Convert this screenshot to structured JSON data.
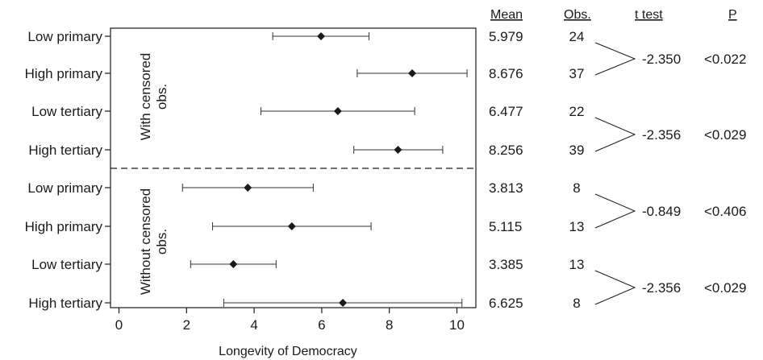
{
  "chart_data": {
    "type": "scatter",
    "xlabel": "Longevity of Democracy",
    "xlim": [
      -0.3,
      10.6
    ],
    "xticks": [
      "0",
      "2",
      "4",
      "6",
      "8",
      "10"
    ],
    "panels": [
      {
        "label": "With censored obs.",
        "rows": [
          {
            "label": "Low primary",
            "mean": 5.979,
            "low": 4.55,
            "high": 7.4,
            "mean_text": "5.979",
            "obs": "24"
          },
          {
            "label": "High primary",
            "mean": 8.676,
            "low": 7.05,
            "high": 10.3,
            "mean_text": "8.676",
            "obs": "37"
          },
          {
            "label": "Low tertiary",
            "mean": 6.477,
            "low": 4.2,
            "high": 8.75,
            "mean_text": "6.477",
            "obs": "22"
          },
          {
            "label": "High tertiary",
            "mean": 8.256,
            "low": 6.95,
            "high": 9.58,
            "mean_text": "8.256",
            "obs": "39"
          }
        ],
        "tests": [
          {
            "t": "-2.350",
            "p": "<0.022"
          },
          {
            "t": "-2.356",
            "p": "<0.029"
          }
        ]
      },
      {
        "label": "Without censored obs.",
        "rows": [
          {
            "label": "Low primary",
            "mean": 3.813,
            "low": 1.88,
            "high": 5.75,
            "mean_text": "3.813",
            "obs": "8"
          },
          {
            "label": "High primary",
            "mean": 5.115,
            "low": 2.77,
            "high": 7.46,
            "mean_text": "5.115",
            "obs": "13"
          },
          {
            "label": "Low tertiary",
            "mean": 3.385,
            "low": 2.12,
            "high": 4.65,
            "mean_text": "3.385",
            "obs": "13"
          },
          {
            "label": "High tertiary",
            "mean": 6.625,
            "low": 3.1,
            "high": 10.15,
            "mean_text": "6.625",
            "obs": "8"
          }
        ],
        "tests": [
          {
            "t": "-0.849",
            "p": "<0.406"
          },
          {
            "t": "-2.356",
            "p": "<0.029"
          }
        ]
      }
    ]
  },
  "table_headers": {
    "mean": "Mean",
    "obs": "Obs.",
    "t_test": "t test",
    "p": "P"
  },
  "colors": {
    "marker": "#1a1a1a",
    "line": "#333333"
  }
}
